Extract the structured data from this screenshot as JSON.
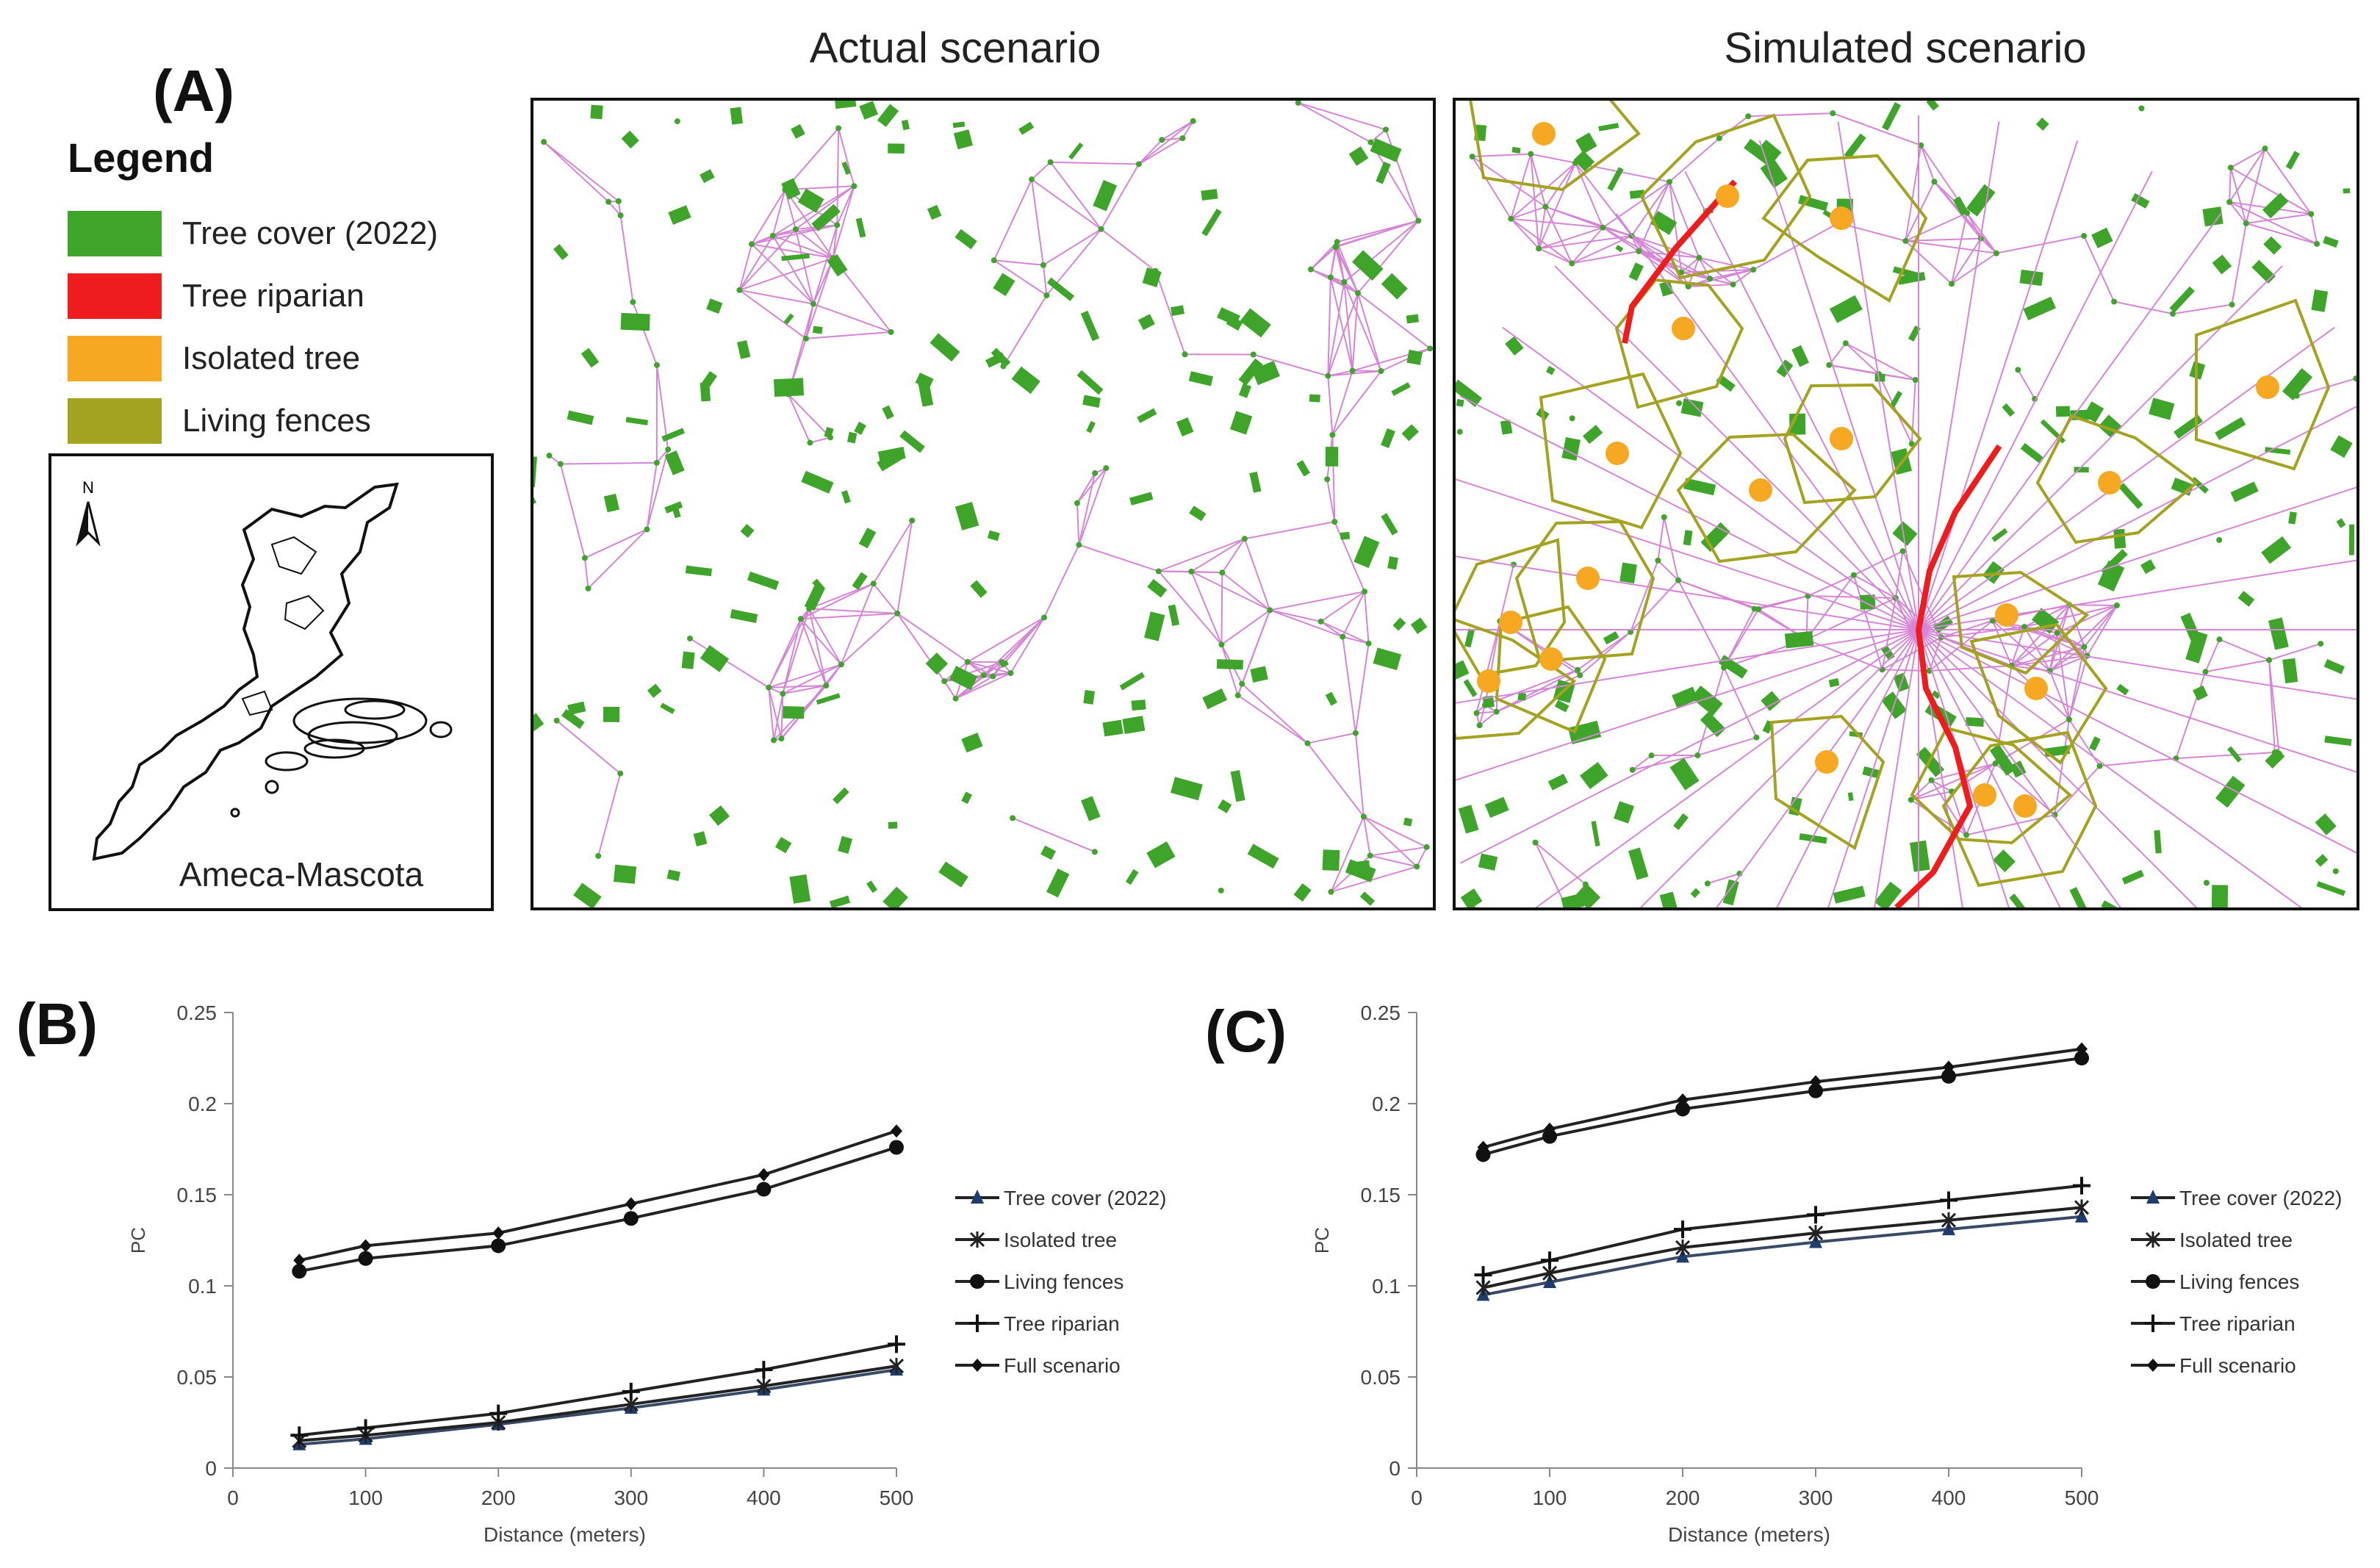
{
  "panelA": {
    "letter": "(A)",
    "legend": {
      "title": "Legend",
      "items": [
        {
          "label": "Tree cover (2022)",
          "color": "#3fa52a"
        },
        {
          "label": "Tree riparian",
          "color": "#ee1c1c"
        },
        {
          "label": "Isolated tree",
          "color": "#f7a823"
        },
        {
          "label": "Living fences",
          "color": "#a3a321"
        }
      ]
    },
    "inset": {
      "north": "N",
      "region": "Ameca-Mascota"
    },
    "maps": [
      {
        "title": "Actual scenario"
      },
      {
        "title": "Simulated scenario"
      }
    ],
    "colors": {
      "network": "#d685d6",
      "cover": "#3fa52a",
      "riparian": "#ee1c1c",
      "isolated": "#f7a823",
      "fence": "#a3a321"
    }
  },
  "chart_data": [
    {
      "panel": "(B)",
      "type": "line",
      "xlabel": "Distance (meters)",
      "ylabel": "PC",
      "xlim": [
        0,
        500
      ],
      "ylim": [
        0,
        0.25
      ],
      "xticks": [
        "0",
        "100",
        "200",
        "300",
        "400",
        "500"
      ],
      "yticks": [
        "0",
        "0.05",
        "0.1",
        "0.15",
        "0.2",
        "0.25"
      ],
      "x": [
        50,
        100,
        200,
        300,
        400,
        500
      ],
      "series": [
        {
          "name": "Tree cover (2022)",
          "marker": "triangle",
          "values": [
            0.013,
            0.016,
            0.024,
            0.033,
            0.043,
            0.054
          ]
        },
        {
          "name": "Isolated tree",
          "marker": "x",
          "values": [
            0.015,
            0.018,
            0.025,
            0.035,
            0.045,
            0.056
          ]
        },
        {
          "name": "Living fences",
          "marker": "circle",
          "values": [
            0.108,
            0.115,
            0.122,
            0.137,
            0.153,
            0.176
          ]
        },
        {
          "name": "Tree riparian",
          "marker": "plus",
          "values": [
            0.018,
            0.022,
            0.03,
            0.042,
            0.054,
            0.068
          ]
        },
        {
          "name": "Full scenario",
          "marker": "diamond",
          "values": [
            0.114,
            0.122,
            0.129,
            0.145,
            0.161,
            0.185
          ]
        }
      ]
    },
    {
      "panel": "(C)",
      "type": "line",
      "xlabel": "Distance (meters)",
      "ylabel": "PC",
      "xlim": [
        0,
        500
      ],
      "ylim": [
        0,
        0.25
      ],
      "xticks": [
        "0",
        "100",
        "200",
        "300",
        "400",
        "500"
      ],
      "yticks": [
        "0",
        "0.05",
        "0.1",
        "0.15",
        "0.2",
        "0.25"
      ],
      "x": [
        50,
        100,
        200,
        300,
        400,
        500
      ],
      "series": [
        {
          "name": "Tree cover (2022)",
          "marker": "triangle",
          "values": [
            0.095,
            0.102,
            0.116,
            0.124,
            0.131,
            0.138
          ]
        },
        {
          "name": "Isolated tree",
          "marker": "x",
          "values": [
            0.099,
            0.107,
            0.121,
            0.129,
            0.136,
            0.143
          ]
        },
        {
          "name": "Living fences",
          "marker": "circle",
          "values": [
            0.172,
            0.182,
            0.197,
            0.207,
            0.215,
            0.225
          ]
        },
        {
          "name": "Tree riparian",
          "marker": "plus",
          "values": [
            0.106,
            0.114,
            0.131,
            0.139,
            0.147,
            0.155
          ]
        },
        {
          "name": "Full scenario",
          "marker": "diamond",
          "values": [
            0.176,
            0.186,
            0.202,
            0.212,
            0.22,
            0.23
          ]
        }
      ]
    }
  ]
}
